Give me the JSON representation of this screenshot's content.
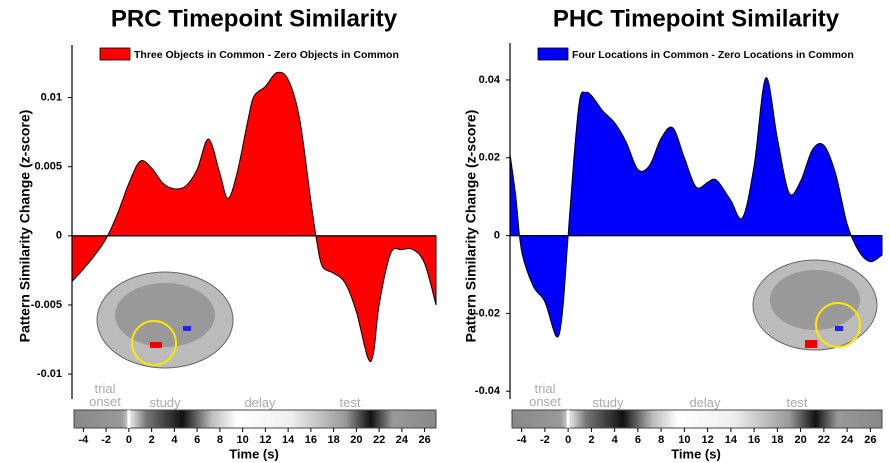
{
  "chart_data": [
    {
      "type": "area",
      "title": "PRC Timepoint Similarity",
      "y_label": "Pattern Similarity Change (z-score)",
      "x_label": "Time (s)",
      "x": [
        -5,
        -4,
        -3,
        -2,
        -1,
        0,
        1,
        2,
        3,
        4,
        5,
        6,
        7,
        8,
        8.7,
        9.5,
        10.5,
        11,
        12,
        13,
        14,
        15,
        16,
        16.5,
        17,
        18,
        19,
        20,
        21,
        21.5,
        22,
        23,
        24,
        25,
        26,
        27
      ],
      "series": [
        {
          "name": "Three Objects in Common - Zero Objects in Common",
          "color": "#ff0000",
          "values": [
            -0.0033,
            -0.0024,
            -0.0014,
            -0.0002,
            0.0016,
            0.0038,
            0.0054,
            0.0049,
            0.0038,
            0.0034,
            0.0036,
            0.0048,
            0.007,
            0.0045,
            0.0027,
            0.0045,
            0.0085,
            0.0101,
            0.0108,
            0.0118,
            0.0113,
            0.0085,
            0.0025,
            -0.0003,
            -0.0022,
            -0.0027,
            -0.0034,
            -0.0055,
            -0.0088,
            -0.0085,
            -0.005,
            -0.0013,
            -0.001,
            -0.001,
            -0.002,
            -0.005
          ]
        }
      ],
      "xlim": [
        -5,
        27
      ],
      "xticks": [
        -4,
        -2,
        0,
        2,
        4,
        6,
        8,
        10,
        12,
        14,
        16,
        18,
        20,
        22,
        24,
        26
      ],
      "ylim": [
        -0.0118,
        0.0138
      ],
      "yticks": [
        -0.01,
        -0.005,
        0,
        0.005,
        0.01
      ],
      "phases": [
        "trial onset",
        "study",
        "delay",
        "test"
      ]
    },
    {
      "type": "area",
      "title": "PHC Timepoint Similarity",
      "y_label": "Pattern Similarity Change (z-score)",
      "x_label": "Time (s)",
      "x": [
        -5,
        -4.5,
        -4,
        -3,
        -2,
        -1,
        -0.5,
        0,
        0.5,
        1,
        1.5,
        2,
        3,
        4,
        5,
        6,
        7,
        8,
        9,
        10,
        11,
        12,
        12.5,
        13,
        14,
        15,
        16,
        17,
        18,
        19,
        20,
        21,
        22,
        23,
        24,
        25,
        26,
        27
      ],
      "series": [
        {
          "name": "Four Locations in Common - Zero Locations in Common",
          "color": "#0000ff",
          "values": [
            0.021,
            0.01,
            -0.004,
            -0.013,
            -0.017,
            -0.026,
            -0.02,
            0,
            0.02,
            0.035,
            0.0368,
            0.036,
            0.032,
            0.029,
            0.024,
            0.017,
            0.018,
            0.025,
            0.0277,
            0.02,
            0.0125,
            0.0137,
            0.0145,
            0.0135,
            0.009,
            0.0046,
            0.018,
            0.0405,
            0.025,
            0.011,
            0.014,
            0.022,
            0.0232,
            0.016,
            0.003,
            -0.004,
            -0.0067,
            -0.005
          ]
        }
      ],
      "xlim": [
        -5,
        27
      ],
      "xticks": [
        -4,
        -2,
        0,
        2,
        4,
        6,
        8,
        10,
        12,
        14,
        16,
        18,
        20,
        22,
        24,
        26
      ],
      "ylim": [
        -0.042,
        0.0495
      ],
      "yticks": [
        -0.04,
        -0.02,
        0,
        0.02,
        0.04
      ],
      "phases": [
        "trial onset",
        "study",
        "delay",
        "test"
      ]
    }
  ]
}
